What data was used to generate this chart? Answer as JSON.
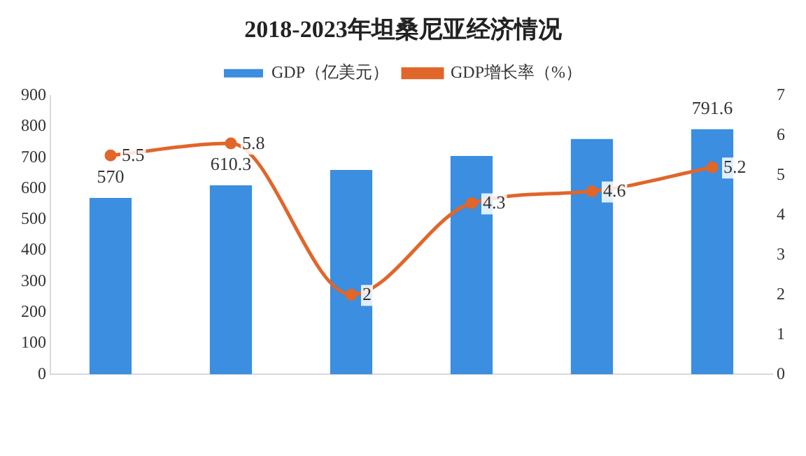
{
  "chart_data": {
    "type": "bar",
    "title": "2018-2023年坦桑尼亚经济情况",
    "categories": [
      null,
      null,
      null,
      null,
      null,
      null
    ],
    "series": [
      {
        "name": "GDP（亿美元）",
        "color": "#3b8ee0",
        "values": [
          570,
          610.3,
          660,
          705,
          760,
          791.6
        ],
        "value_labels": [
          "570",
          "610.3",
          null,
          null,
          null,
          "791.6"
        ]
      },
      {
        "name": "GDP增长率（%）",
        "type": "line",
        "axis": "y2",
        "color": "#e0662a",
        "values": [
          5.5,
          5.8,
          2,
          4.3,
          4.6,
          5.2
        ],
        "value_labels": [
          "5.5",
          "5.8",
          "2",
          "4.3",
          "4.6",
          "5.2"
        ]
      }
    ],
    "ylim": [
      0,
      900
    ],
    "yticks": [
      0,
      100,
      200,
      300,
      400,
      500,
      600,
      700,
      800,
      900
    ],
    "y2lim": [
      0,
      7
    ],
    "y2ticks": [
      0,
      1,
      2,
      3,
      4,
      5,
      6,
      7
    ],
    "grid": false,
    "legend": "top",
    "marker": "circle"
  }
}
